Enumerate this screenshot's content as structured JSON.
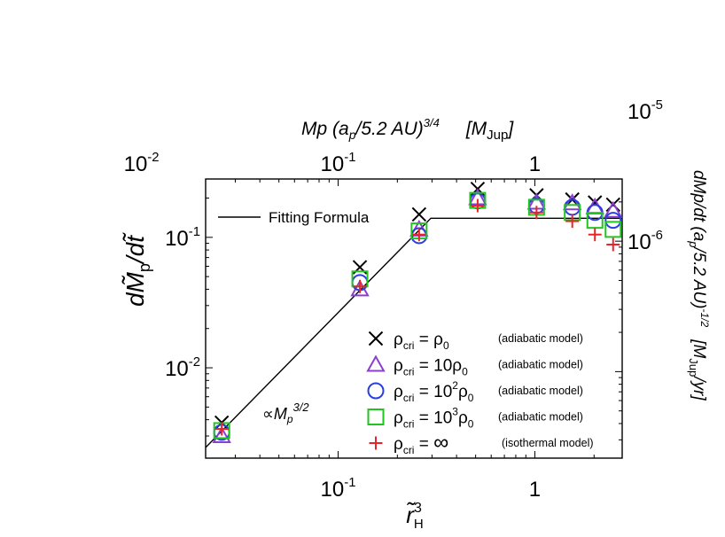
{
  "chart_data": {
    "type": "scatter",
    "xscale": "log",
    "yscale": "log",
    "xlim": [
      0.0212,
      2.78
    ],
    "ylim": [
      0.00203,
      0.28
    ],
    "xlabel": {
      "base": "r̃",
      "sup": "3",
      "sub": "H"
    },
    "ylabel": {
      "part1": "dM̃",
      "sub": "p",
      "part2": "/dt̃"
    },
    "x_ticks": [
      {
        "value": 0.1,
        "base": "10",
        "sup": "-1"
      },
      {
        "value": 1,
        "base": "1",
        "sup": ""
      }
    ],
    "y_ticks": [
      {
        "value": 0.01,
        "base": "10",
        "sup": "-2"
      },
      {
        "value": 0.1,
        "base": "10",
        "sup": "-1"
      }
    ],
    "top_axis": {
      "label_parts": {
        "a": "Mp (a",
        "b": "p",
        "c": "/5.2 AU)",
        "d": "3/4",
        "e": "[M",
        "f": "Jup",
        "g": "]"
      },
      "ticks": [
        {
          "value": 0.01,
          "base": "10",
          "sup": "-2"
        },
        {
          "value": 0.1,
          "base": "10",
          "sup": "-1"
        },
        {
          "value": 1,
          "base": "1",
          "sup": ""
        }
      ],
      "x_at_1": 1.0
    },
    "right_axis": {
      "label_parts": {
        "a": "dMp/dt (a",
        "b": "p",
        "c": "/5.2 AU)",
        "d": "-1/2",
        "e": "[M",
        "f": "Jup",
        "g": "/yr]"
      },
      "ticks": [
        {
          "value": 1e-05,
          "base": "10",
          "sup": "-5"
        },
        {
          "value": 1e-06,
          "base": "10",
          "sup": "-6"
        }
      ],
      "ratio": 1.07e-05
    },
    "fit": {
      "label": "Fitting Formula",
      "points": [
        [
          0.0212,
          0.00245
        ],
        [
          0.296,
          0.14
        ],
        [
          2.78,
          0.14
        ]
      ]
    },
    "slope_annotation": {
      "prefix": "∝",
      "text": "M",
      "sub": "p",
      "sup": "3/2"
    },
    "series": [
      {
        "name": "ρcri = ρ0",
        "marker": "x",
        "color": "#000000",
        "legend": {
          "lhs": "ρ",
          "lhs_sub": "cri",
          "eq": " = ",
          "coef": "",
          "coef_sup": "",
          "rho": "ρ",
          "rho_sub": "0",
          "model": "(adiabatic model)"
        },
        "x": [
          0.0256,
          0.129,
          0.258,
          0.512,
          1.02,
          1.55,
          2.02,
          2.5
        ],
        "y": [
          0.0038,
          0.059,
          0.15,
          0.235,
          0.21,
          0.195,
          0.185,
          0.178
        ]
      },
      {
        "name": "ρcri = 10ρ0",
        "marker": "triangle",
        "color": "#8a3fd0",
        "legend": {
          "lhs": "ρ",
          "lhs_sub": "cri",
          "eq": " = ",
          "coef": "10",
          "coef_sup": "",
          "rho": "ρ",
          "rho_sub": "0",
          "model": "(adiabatic model)"
        },
        "x": [
          0.0256,
          0.129,
          0.258,
          0.512,
          1.02,
          1.55,
          2.02,
          2.5
        ],
        "y": [
          0.003,
          0.04,
          0.115,
          0.2,
          0.185,
          0.183,
          0.17,
          0.16
        ]
      },
      {
        "name": "ρcri = 10^2ρ0",
        "marker": "circle",
        "color": "#2a3fe0",
        "legend": {
          "lhs": "ρ",
          "lhs_sub": "cri",
          "eq": " = ",
          "coef": "10",
          "coef_sup": "2",
          "rho": "ρ",
          "rho_sub": "0",
          "model": "(adiabatic model)"
        },
        "x": [
          0.0256,
          0.129,
          0.258,
          0.512,
          1.02,
          1.55,
          2.02,
          2.5
        ],
        "y": [
          0.0032,
          0.045,
          0.103,
          0.19,
          0.175,
          0.17,
          0.155,
          0.135
        ]
      },
      {
        "name": "ρcri = 10^3ρ0",
        "marker": "square",
        "color": "#22c422",
        "legend": {
          "lhs": "ρ",
          "lhs_sub": "cri",
          "eq": " = ",
          "coef": "10",
          "coef_sup": "3",
          "rho": "ρ",
          "rho_sub": "0",
          "model": "(adiabatic model)"
        },
        "x": [
          0.0256,
          0.129,
          0.258,
          0.512,
          1.02,
          1.55,
          2.02,
          2.5
        ],
        "y": [
          0.0033,
          0.048,
          0.112,
          0.192,
          0.17,
          0.155,
          0.135,
          0.115
        ]
      },
      {
        "name": "ρcri = ∞",
        "marker": "plus",
        "color": "#e8242b",
        "legend": {
          "lhs": "ρ",
          "lhs_sub": "cri",
          "eq": " = ",
          "coef": "∞",
          "coef_sup": "",
          "rho": "",
          "rho_sub": "",
          "model": "(isothermal model)"
        },
        "x": [
          0.0256,
          0.129,
          0.258,
          0.512,
          1.02,
          1.55,
          2.02,
          2.5
        ],
        "y": [
          0.0034,
          0.042,
          0.105,
          0.175,
          0.155,
          0.133,
          0.105,
          0.088
        ]
      }
    ]
  }
}
